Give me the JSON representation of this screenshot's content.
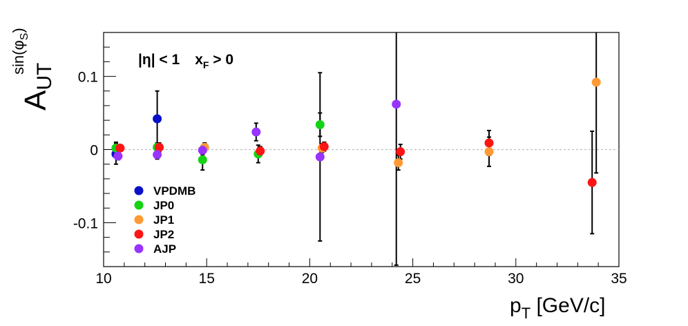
{
  "chart_data": {
    "type": "scatter",
    "xlabel": {
      "main": "p",
      "sub": "T",
      "rest": " [GeV/c]"
    },
    "ylabel": {
      "main": "A",
      "sub": "UT",
      "sup": "sin(φ",
      "supsub": "S",
      "supclose": ")"
    },
    "xlim": [
      10,
      35
    ],
    "ylim": [
      -0.16,
      0.16
    ],
    "xticks": [
      10,
      15,
      20,
      25,
      30,
      35
    ],
    "xtick_labels": [
      "10",
      "15",
      "20",
      "25",
      "30",
      "35"
    ],
    "yticks": [
      -0.1,
      0,
      0.1
    ],
    "ytick_labels": [
      "-0.1",
      "0",
      "0.1"
    ],
    "zero_line": true,
    "annotation": {
      "part1": "|η| < 1",
      "part2": "x",
      "part2_sub": "F",
      "part2_rest": " > 0"
    },
    "legend_position": "lower-left",
    "series": [
      {
        "name": "VPDMB",
        "color": "#0a10c8",
        "points": [
          {
            "x": 10.6,
            "y": -0.006,
            "err": 0.014
          },
          {
            "x": 12.6,
            "y": 0.042,
            "err": 0.038
          }
        ]
      },
      {
        "name": "JP0",
        "color": "#14d214",
        "points": [
          {
            "x": 10.6,
            "y": 0.002,
            "err": 0.008
          },
          {
            "x": 12.6,
            "y": 0.003,
            "err": 0.006
          },
          {
            "x": 14.8,
            "y": -0.014,
            "err": 0.014
          },
          {
            "x": 17.5,
            "y": -0.006,
            "err": 0.012
          },
          {
            "x": 20.5,
            "y": 0.034,
            "err": 0.016
          }
        ]
      },
      {
        "name": "JP1",
        "color": "#ff9933",
        "points": [
          {
            "x": 14.9,
            "y": 0.003,
            "err": 0.006
          },
          {
            "x": 20.6,
            "y": 0.002,
            "err": 0.006
          },
          {
            "x": 24.3,
            "y": -0.018,
            "err": 0.01
          },
          {
            "x": 28.7,
            "y": -0.003,
            "err": 0.02
          },
          {
            "x": 33.9,
            "y": 0.092,
            "err": 0.124
          }
        ]
      },
      {
        "name": "JP2",
        "color": "#ff1414",
        "points": [
          {
            "x": 10.8,
            "y": 0.002,
            "err": 0.004
          },
          {
            "x": 12.7,
            "y": 0.003,
            "err": 0.006
          },
          {
            "x": 17.6,
            "y": -0.002,
            "err": 0.006
          },
          {
            "x": 20.7,
            "y": 0.004,
            "err": 0.006
          },
          {
            "x": 24.4,
            "y": -0.003,
            "err": 0.01
          },
          {
            "x": 28.7,
            "y": 0.009,
            "err": 0.017
          },
          {
            "x": 33.7,
            "y": -0.045,
            "err": 0.07
          }
        ]
      },
      {
        "name": "AJP",
        "color": "#9933ff",
        "points": [
          {
            "x": 10.7,
            "y": -0.009,
            "err": 0.005
          },
          {
            "x": 12.6,
            "y": -0.007,
            "err": 0.006
          },
          {
            "x": 14.8,
            "y": -0.001,
            "err": 0.006
          },
          {
            "x": 17.4,
            "y": 0.024,
            "err": 0.012
          },
          {
            "x": 20.5,
            "y": -0.01,
            "err": 0.115
          },
          {
            "x": 24.2,
            "y": 0.062,
            "err": 0.22
          }
        ]
      }
    ]
  }
}
